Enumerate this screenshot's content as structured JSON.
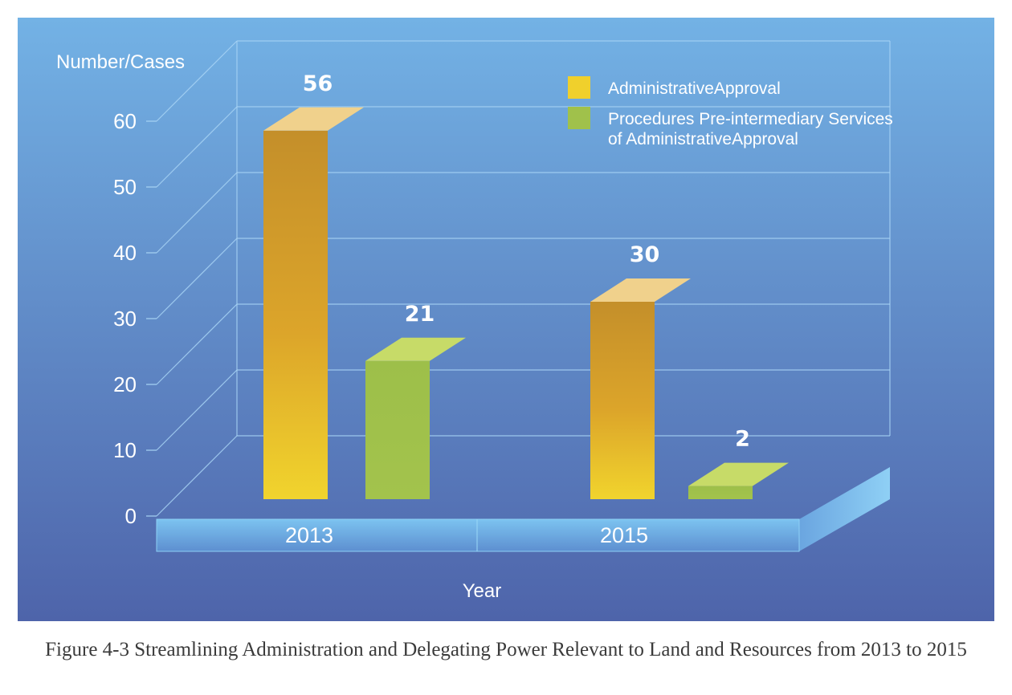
{
  "caption": "Figure 4-3 Streamlining Administration and Delegating Power Relevant to Land and Resources from 2013 to 2015",
  "colors": {
    "background_top": "#72b1e4",
    "background_bottom": "#4f67ac",
    "administrative_approval": "#f0d02c",
    "pre_intermediary_services": "#a0c14b",
    "label_text": "#ffffff"
  },
  "chart_data": {
    "type": "bar",
    "style": "3d",
    "title": "",
    "xlabel": "Year",
    "ylabel": "Number/Cases",
    "categories": [
      "2013",
      "2015"
    ],
    "ylim": [
      0,
      60
    ],
    "yticks": [
      "0",
      "10",
      "20",
      "30",
      "40",
      "50",
      "60"
    ],
    "grid": true,
    "legend_position": "top-right",
    "series": [
      {
        "name": "AdministrativeApproval",
        "name_lines": [
          "AdministrativeApproval"
        ],
        "color": "#f0d02c",
        "values": [
          56,
          30
        ],
        "value_labels": [
          "56",
          "30"
        ]
      },
      {
        "name": "Procedures Pre-intermediary Services of AdministrativeApproval",
        "name_lines": [
          "Procedures Pre-intermediary Services",
          "of AdministrativeApproval"
        ],
        "color": "#a0c14b",
        "values": [
          21,
          2
        ],
        "value_labels": [
          "21",
          "2"
        ]
      }
    ]
  }
}
